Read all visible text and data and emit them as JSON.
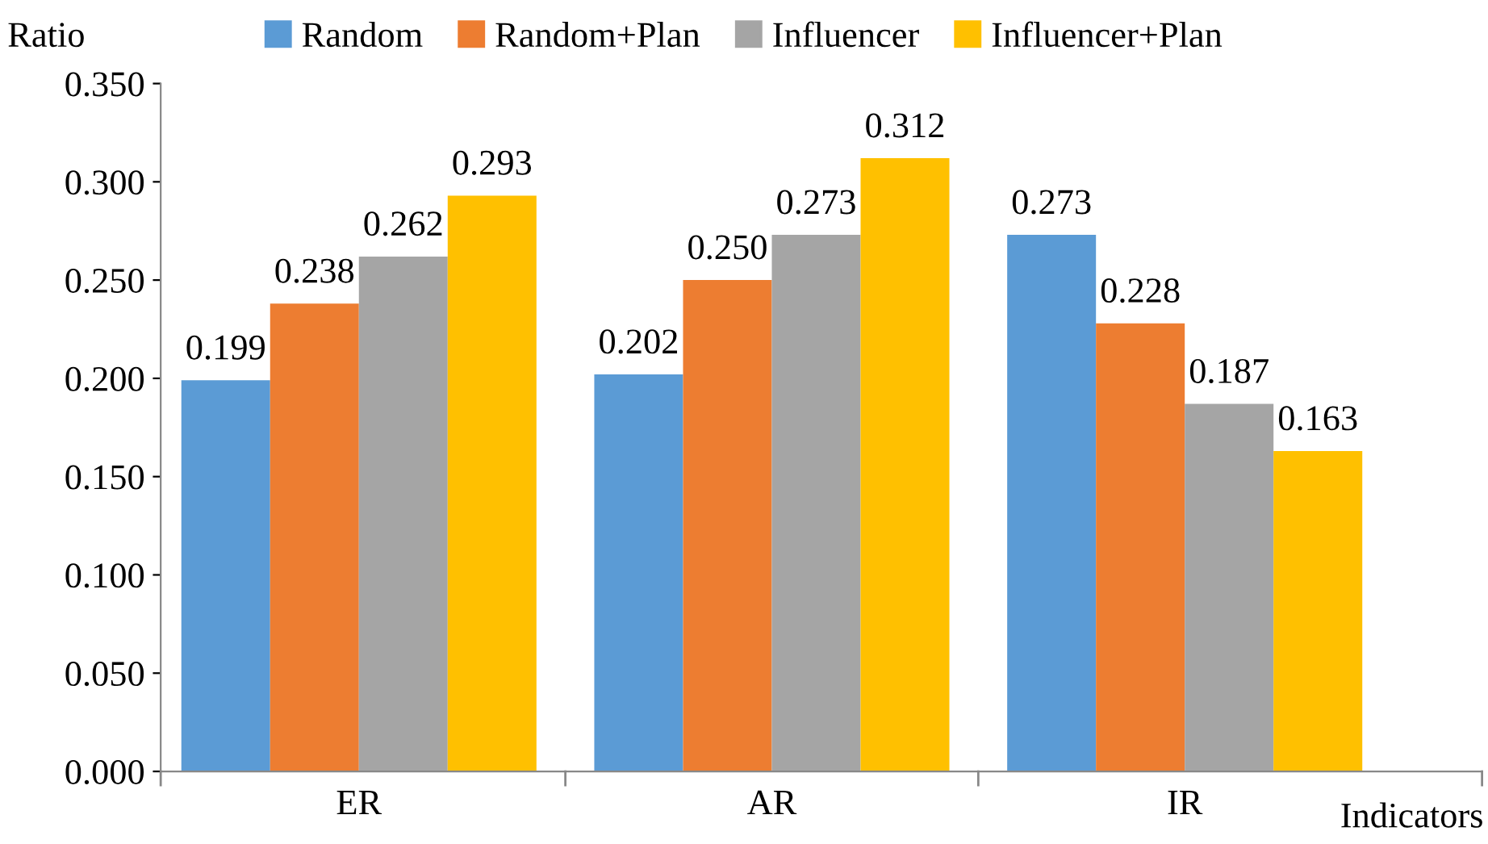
{
  "chart_data": {
    "type": "bar",
    "xlabel": "Indicators",
    "ylabel": "Ratio",
    "categories": [
      "ER",
      "AR",
      "IR"
    ],
    "series": [
      {
        "name": "Random",
        "color": "#5b9bd5",
        "values": [
          0.199,
          0.202,
          0.273
        ],
        "value_labels": [
          "0.199",
          "0.202",
          "0.273"
        ]
      },
      {
        "name": "Random+Plan",
        "color": "#ed7d31",
        "values": [
          0.238,
          0.25,
          0.228
        ],
        "value_labels": [
          "0.238",
          "0.250",
          "0.228"
        ]
      },
      {
        "name": "Influencer",
        "color": "#a5a5a5",
        "values": [
          0.262,
          0.273,
          0.187
        ],
        "value_labels": [
          "0.262",
          "0.273",
          "0.187"
        ]
      },
      {
        "name": "Influencer+Plan",
        "color": "#ffc000",
        "values": [
          0.293,
          0.312,
          0.163
        ],
        "value_labels": [
          "0.293",
          "0.312",
          "0.163"
        ]
      }
    ],
    "ylim": [
      0,
      0.35
    ],
    "yticks": [
      {
        "value": 0,
        "label": "0.000"
      },
      {
        "value": 0.05,
        "label": "0.050"
      },
      {
        "value": 0.1,
        "label": "0.100"
      },
      {
        "value": 0.15,
        "label": "0.150"
      },
      {
        "value": 0.2,
        "label": "0.200"
      },
      {
        "value": 0.25,
        "label": "0.250"
      },
      {
        "value": 0.3,
        "label": "0.300"
      },
      {
        "value": 0.35,
        "label": "0.350"
      }
    ],
    "grid": false,
    "legend": "top"
  }
}
